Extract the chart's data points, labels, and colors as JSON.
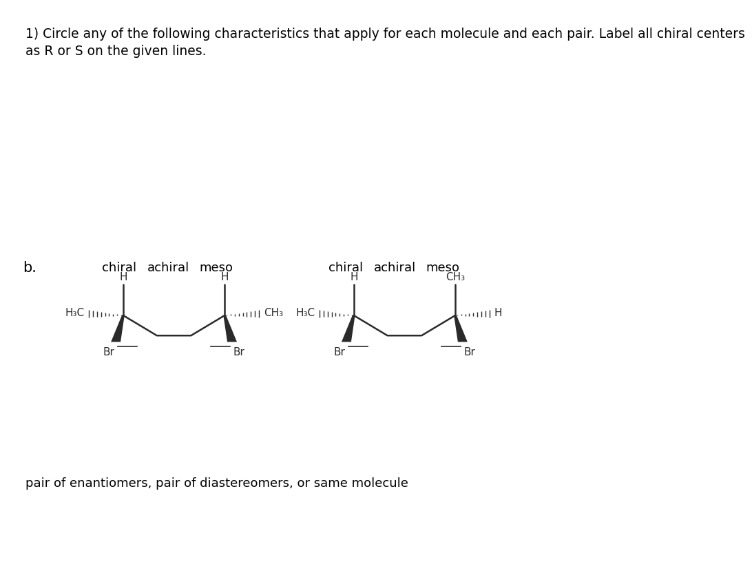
{
  "title_line1": "1) Circle any of the following characteristics that apply for each molecule and each pair. Label all chiral centers",
  "title_line2": "as R or S on the given lines.",
  "label_b": "b.",
  "pair_label": "pair of enantiomers, pair of diastereomers, or same molecule",
  "bg_color": "#ffffff",
  "text_color": "#000000",
  "line_color": "#2a2a2a",
  "font_size_title": 13.5,
  "font_size_labels": 13,
  "font_size_b": 15,
  "font_size_mol": 11
}
